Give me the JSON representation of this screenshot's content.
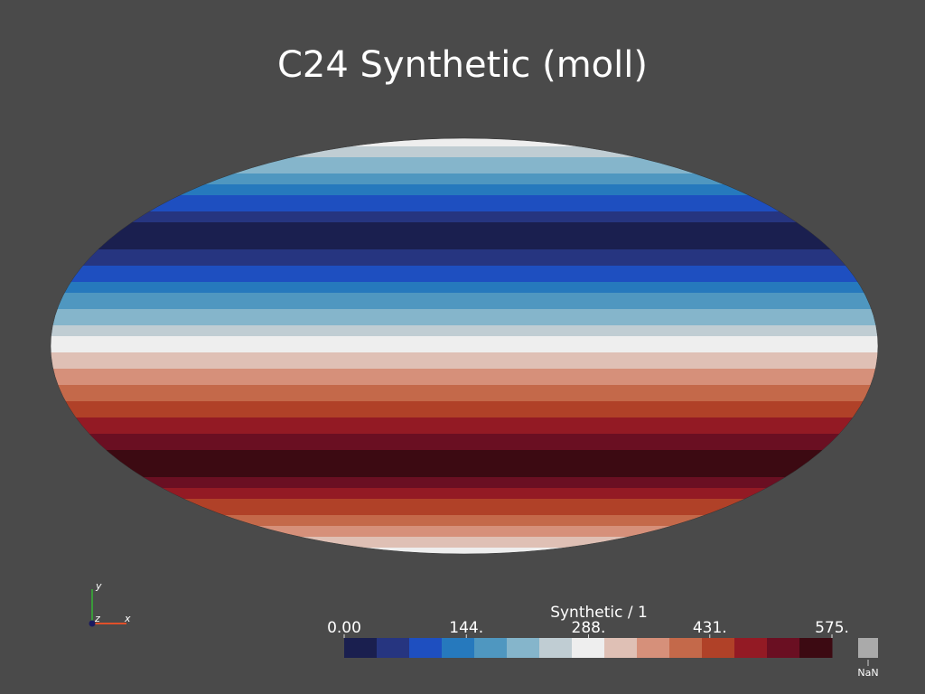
{
  "title": "C24 Synthetic (moll)",
  "colorbar": {
    "title": "Synthetic / 1",
    "range": [
      0,
      575
    ],
    "ticks": [
      {
        "value": 0,
        "label": "0.00"
      },
      {
        "value": 144,
        "label": "144."
      },
      {
        "value": 288,
        "label": "288."
      },
      {
        "value": 431,
        "label": "431."
      },
      {
        "value": 575,
        "label": "575."
      }
    ],
    "colors": [
      "#1a1f4f",
      "#263580",
      "#1e4fc0",
      "#2679bd",
      "#4f97c0",
      "#85b5cb",
      "#c0cdd3",
      "#eeeeee",
      "#dfc0b5",
      "#d6907a",
      "#c4694a",
      "#b04128",
      "#931a24",
      "#6a0f22",
      "#3c0a12"
    ],
    "nan_label": "NaN",
    "nan_color": "#aaaaaa"
  },
  "axes_widget": {
    "x": "x",
    "y": "y",
    "z": "z"
  }
}
